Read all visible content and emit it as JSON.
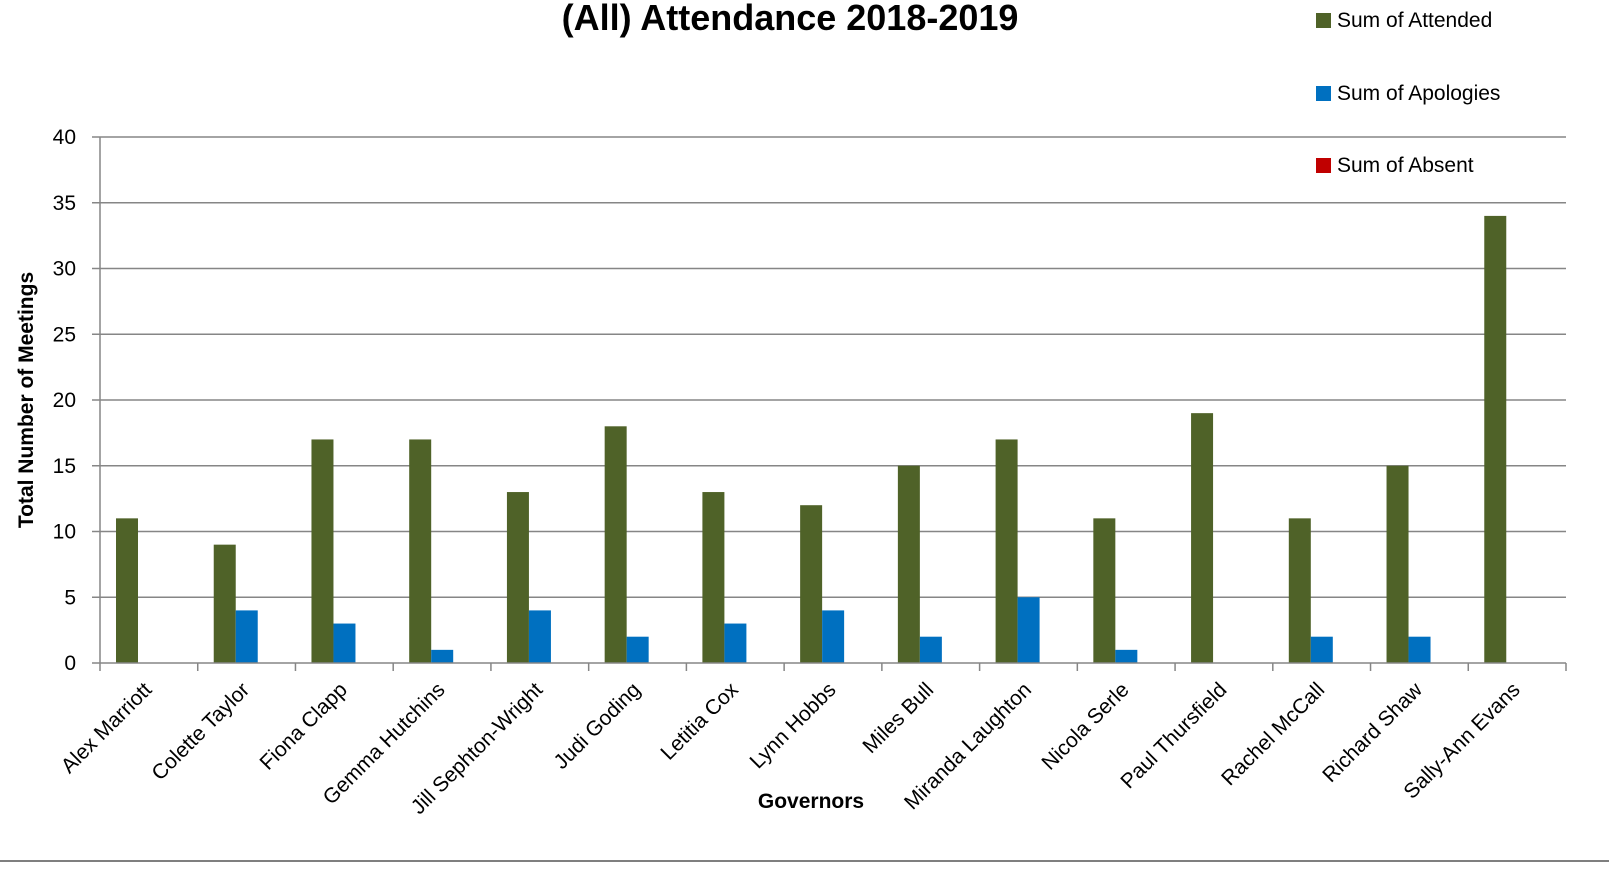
{
  "chart_data": {
    "type": "bar",
    "title": "(All) Attendance 2018-2019",
    "xlabel": "Governors",
    "ylabel": "Total Number of Meetings",
    "ylim": [
      0,
      40
    ],
    "yticks": [
      0,
      5,
      10,
      15,
      20,
      25,
      30,
      35,
      40
    ],
    "grid": true,
    "legend_position": "top-right",
    "categories": [
      "Alex Marriott",
      "Colette Taylor",
      "Fiona Clapp",
      "Gemma Hutchins",
      "Jill Sephton-Wright",
      "Judi Goding",
      "Letitia Cox",
      "Lynn Hobbs",
      "Miles Bull",
      "Miranda Laughton",
      "Nicola Serle",
      "Paul Thursfield",
      "Rachel McCall",
      "Richard Shaw",
      "Sally-Ann Evans"
    ],
    "series": [
      {
        "name": "Sum of Attended",
        "color": "#4f6228",
        "values": [
          11,
          9,
          17,
          17,
          13,
          18,
          13,
          12,
          15,
          17,
          11,
          19,
          11,
          15,
          34
        ]
      },
      {
        "name": "Sum of Apologies",
        "color": "#0070c0",
        "values": [
          0,
          4,
          3,
          1,
          4,
          2,
          3,
          4,
          2,
          5,
          1,
          0,
          2,
          2,
          0
        ]
      },
      {
        "name": "Sum of Absent",
        "color": "#c00000",
        "values": [
          0,
          0,
          0,
          0,
          0,
          0,
          0,
          0,
          0,
          0,
          0,
          0,
          0,
          0,
          0
        ]
      }
    ]
  }
}
